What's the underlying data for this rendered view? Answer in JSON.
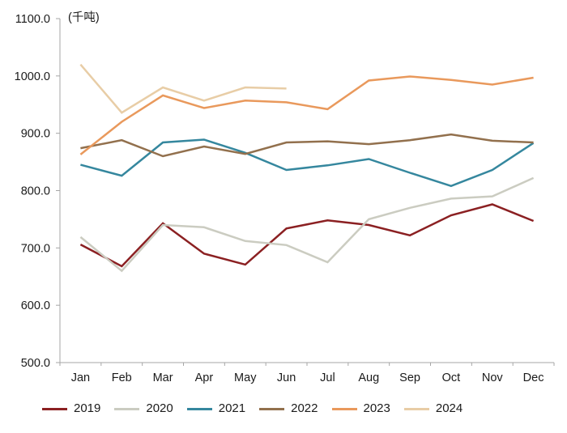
{
  "chart_data": {
    "type": "line",
    "title": "(千吨)",
    "categories": [
      "Jan",
      "Feb",
      "Mar",
      "Apr",
      "May",
      "Jun",
      "Jul",
      "Aug",
      "Sep",
      "Oct",
      "Nov",
      "Dec"
    ],
    "series": [
      {
        "name": "2019",
        "color": "#8b2022",
        "values": [
          706,
          668,
          743,
          690,
          671,
          734,
          748,
          740,
          722,
          757,
          776,
          747
        ]
      },
      {
        "name": "2020",
        "color": "#cbccc1",
        "values": [
          719,
          660,
          740,
          736,
          712,
          705,
          675,
          750,
          770,
          786,
          790,
          822
        ]
      },
      {
        "name": "2021",
        "color": "#35879e",
        "values": [
          845,
          826,
          884,
          889,
          866,
          836,
          844,
          855,
          831,
          808,
          836,
          883
        ]
      },
      {
        "name": "2022",
        "color": "#92704d",
        "values": [
          874,
          888,
          860,
          877,
          864,
          884,
          886,
          881,
          888,
          898,
          887,
          884
        ]
      },
      {
        "name": "2023",
        "color": "#e9995c",
        "values": [
          863,
          920,
          966,
          944,
          957,
          954,
          942,
          992,
          999,
          993,
          985,
          997
        ]
      },
      {
        "name": "2024",
        "color": "#e8cda6",
        "values": [
          1020,
          936,
          980,
          957,
          980,
          978,
          null,
          null,
          null,
          null,
          null,
          null
        ]
      }
    ],
    "ylim": [
      500,
      1100
    ],
    "ytick_labels": [
      "1100.0",
      "1000.0",
      "900.0",
      "800.0",
      "700.0",
      "600.0",
      "500.0"
    ],
    "grid": false,
    "legend_position": "bottom",
    "axis_color": "#a6a6a6",
    "text_color": "#1a1a1a"
  }
}
